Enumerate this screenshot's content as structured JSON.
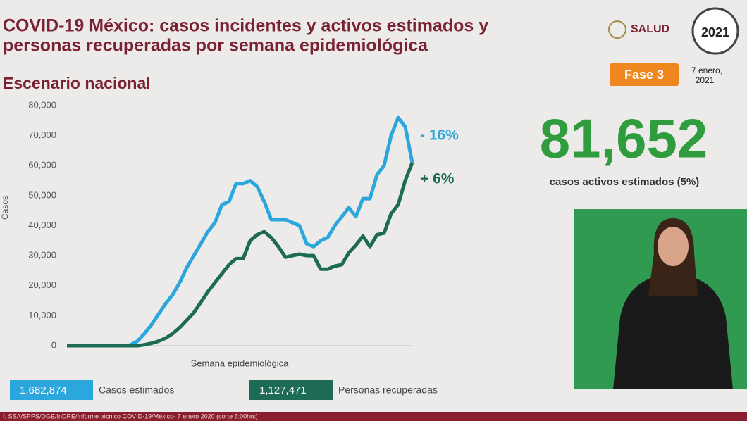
{
  "chart_data": {
    "type": "line",
    "title": [
      "COVID-19 México: casos incidentes y activos estimados y",
      "personas recuperadas por semana epidemiológica"
    ],
    "subtitle": "Escenario nacional",
    "y_label": "Casos",
    "x_label": "Semana epidemiológica",
    "x": [
      1,
      2,
      3,
      4,
      5,
      6,
      7,
      8,
      9,
      10,
      11,
      12,
      13,
      14,
      15,
      16,
      17,
      18,
      19,
      20,
      21,
      22,
      23,
      24,
      25,
      26,
      27,
      28,
      29,
      30,
      31,
      32,
      33,
      34,
      35,
      36,
      37,
      38,
      39,
      40,
      41,
      42,
      43,
      44,
      45,
      46,
      47,
      48,
      49,
      50
    ],
    "xlim": [
      1,
      50
    ],
    "ylim": [
      0,
      80000
    ],
    "yticks": [
      0,
      {
        "value": 10000,
        "label": "10,000"
      },
      {
        "value": 20000,
        "label": "20,000"
      },
      {
        "value": 30000,
        "label": "30,000"
      },
      {
        "value": 40000,
        "label": "40,000"
      },
      {
        "value": 50000,
        "label": "50,000"
      },
      {
        "value": 60000,
        "label": "60,000"
      },
      {
        "value": 70000,
        "label": "70,000"
      },
      {
        "value": 80000,
        "label": "80,000"
      }
    ],
    "series": [
      {
        "name": "Casos estimados",
        "color": "#2ba7dd",
        "total_label": "1,682,874",
        "values": [
          0,
          0,
          0,
          0,
          0,
          0,
          0,
          0,
          0,
          200,
          1500,
          4000,
          7000,
          10500,
          14000,
          17000,
          21000,
          26000,
          30000,
          34000,
          38000,
          41000,
          47000,
          48000,
          54000,
          54000,
          55000,
          53000,
          48000,
          42000,
          42000,
          42000,
          41000,
          40000,
          34000,
          33000,
          35000,
          36000,
          40000,
          43000,
          46000,
          43000,
          49000,
          49000,
          57000,
          60000,
          70000,
          76000,
          73000,
          61000
        ]
      },
      {
        "name": "Personas recuperadas",
        "color": "#1e6b55",
        "total_label": "1,127,471",
        "values": [
          0,
          0,
          0,
          0,
          0,
          0,
          0,
          0,
          0,
          0,
          0,
          300,
          800,
          1500,
          2500,
          4000,
          6000,
          8500,
          11000,
          14500,
          18000,
          21000,
          24000,
          27000,
          29000,
          29000,
          35000,
          37000,
          38000,
          36000,
          33000,
          29500,
          30000,
          30500,
          30000,
          30000,
          25500,
          25500,
          26500,
          27000,
          31000,
          33500,
          36500,
          33000,
          37000,
          37500,
          44000,
          47000,
          55000,
          61000
        ]
      }
    ],
    "annotations": [
      {
        "text": "- 16%",
        "series": 0
      },
      {
        "text": "+ 6%",
        "series": 1
      }
    ]
  },
  "slide": {
    "logo": "SALUD",
    "badge": "2021",
    "phase": "Fase 3",
    "date": [
      "7 enero,",
      "2021"
    ],
    "big_number": "81,652",
    "big_caption": "casos activos estimados (5%)",
    "source": "f. SSA/SPPS/DGE/InDRE/Informe técnico COVID-19/México- 7 enero 2020 (corte 5:00hrs)"
  }
}
